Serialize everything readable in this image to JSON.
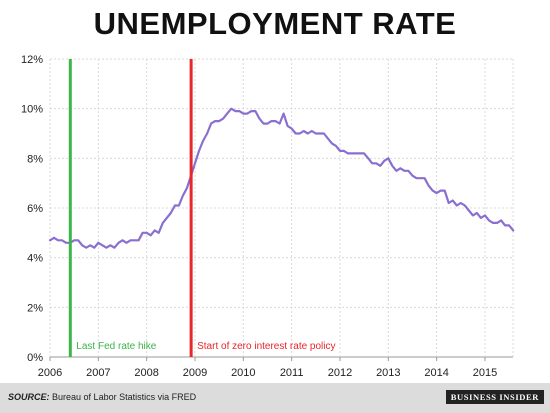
{
  "chart_data": {
    "type": "line",
    "title": "UNEMPLOYMENT RATE",
    "xlabel": "",
    "ylabel": "",
    "xlim": [
      2006.0,
      2015.58
    ],
    "ylim": [
      0,
      12
    ],
    "yticks": [
      {
        "v": 0,
        "label": "0%"
      },
      {
        "v": 2,
        "label": "2%"
      },
      {
        "v": 4,
        "label": "4%"
      },
      {
        "v": 6,
        "label": "6%"
      },
      {
        "v": 8,
        "label": "8%"
      },
      {
        "v": 10,
        "label": "10%"
      },
      {
        "v": 12,
        "label": "12%"
      }
    ],
    "xticks": [
      {
        "v": 2006,
        "label": "2006"
      },
      {
        "v": 2007,
        "label": "2007"
      },
      {
        "v": 2008,
        "label": "2008"
      },
      {
        "v": 2009,
        "label": "2009"
      },
      {
        "v": 2010,
        "label": "2010"
      },
      {
        "v": 2011,
        "label": "2011"
      },
      {
        "v": 2012,
        "label": "2012"
      },
      {
        "v": 2013,
        "label": "2013"
      },
      {
        "v": 2014,
        "label": "2014"
      },
      {
        "v": 2015,
        "label": "2015"
      }
    ],
    "grid": true,
    "series": [
      {
        "color": "#8a6fd0",
        "start": "2006-01",
        "values": [
          4.7,
          4.8,
          4.7,
          4.7,
          4.6,
          4.6,
          4.7,
          4.7,
          4.5,
          4.4,
          4.5,
          4.4,
          4.6,
          4.5,
          4.4,
          4.5,
          4.4,
          4.6,
          4.7,
          4.6,
          4.7,
          4.7,
          4.7,
          5.0,
          5.0,
          4.9,
          5.1,
          5.0,
          5.4,
          5.6,
          5.8,
          6.1,
          6.1,
          6.5,
          6.8,
          7.3,
          7.8,
          8.3,
          8.7,
          9.0,
          9.4,
          9.5,
          9.5,
          9.6,
          9.8,
          10.0,
          9.9,
          9.9,
          9.8,
          9.8,
          9.9,
          9.9,
          9.6,
          9.4,
          9.4,
          9.5,
          9.5,
          9.4,
          9.8,
          9.3,
          9.2,
          9.0,
          9.0,
          9.1,
          9.0,
          9.1,
          9.0,
          9.0,
          9.0,
          8.8,
          8.6,
          8.5,
          8.3,
          8.3,
          8.2,
          8.2,
          8.2,
          8.2,
          8.2,
          8.0,
          7.8,
          7.8,
          7.7,
          7.9,
          8.0,
          7.7,
          7.5,
          7.6,
          7.5,
          7.5,
          7.3,
          7.2,
          7.2,
          7.2,
          6.9,
          6.7,
          6.6,
          6.7,
          6.7,
          6.2,
          6.3,
          6.1,
          6.2,
          6.1,
          5.9,
          5.7,
          5.8,
          5.6,
          5.7,
          5.5,
          5.4,
          5.4,
          5.5,
          5.3,
          5.3,
          5.1
        ]
      }
    ],
    "annotations": [
      {
        "x": 2006.42,
        "label": "Last Fed rate hike",
        "color": "#3cb54a"
      },
      {
        "x": 2008.92,
        "label": "Start of zero interest rate policy",
        "color": "#e8262b"
      }
    ]
  },
  "footer": {
    "source_label": "SOURCE:",
    "source_text": "Bureau of Labor Statistics via FRED",
    "brand": "BUSINESS INSIDER"
  }
}
